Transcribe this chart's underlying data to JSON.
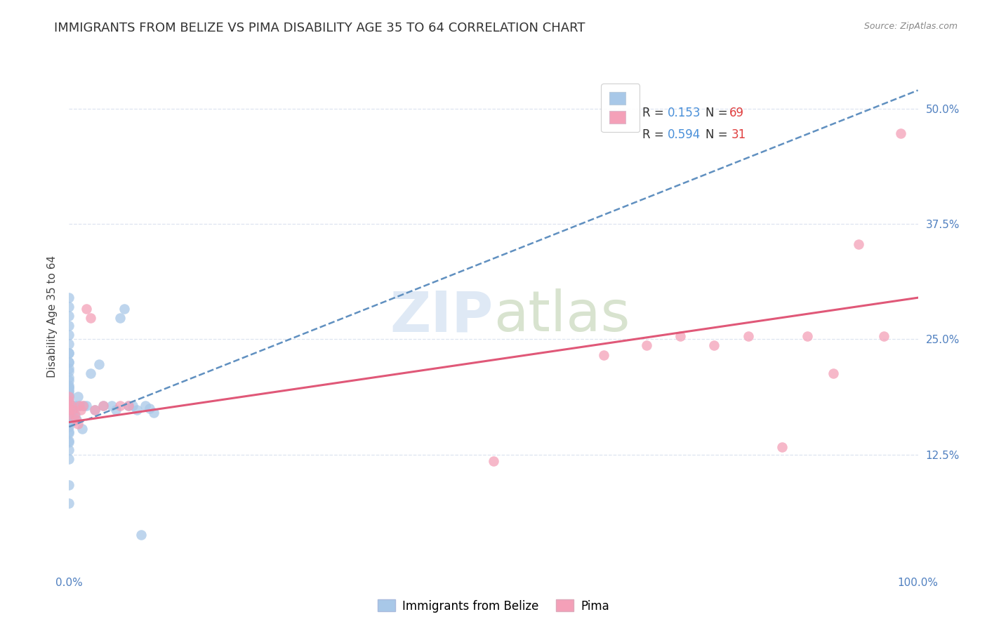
{
  "title": "IMMIGRANTS FROM BELIZE VS PIMA DISABILITY AGE 35 TO 64 CORRELATION CHART",
  "source": "Source: ZipAtlas.com",
  "ylabel": "Disability Age 35 to 64",
  "xlim": [
    0.0,
    1.0
  ],
  "ylim": [
    0.0,
    0.55
  ],
  "xticks": [
    0.0,
    1.0
  ],
  "xticklabels": [
    "0.0%",
    "100.0%"
  ],
  "ytick_positions": [
    0.125,
    0.25,
    0.375,
    0.5
  ],
  "yticklabels_right": [
    "12.5%",
    "25.0%",
    "37.5%",
    "50.0%"
  ],
  "blue_color": "#a8c8e8",
  "pink_color": "#f4a0b8",
  "blue_line_color": "#6090c0",
  "pink_line_color": "#e05878",
  "blue_scatter_x": [
    0.0,
    0.0,
    0.0,
    0.0,
    0.0,
    0.0,
    0.0,
    0.0,
    0.0,
    0.0,
    0.0,
    0.0,
    0.0,
    0.0,
    0.0,
    0.0,
    0.0,
    0.0,
    0.0,
    0.0,
    0.0,
    0.0,
    0.0,
    0.0,
    0.0,
    0.0,
    0.0,
    0.0,
    0.0,
    0.0,
    0.0,
    0.0,
    0.0,
    0.0,
    0.0,
    0.0,
    0.0,
    0.0,
    0.0,
    0.0,
    0.0,
    0.0,
    0.003,
    0.004,
    0.005,
    0.006,
    0.007,
    0.008,
    0.009,
    0.01,
    0.012,
    0.015,
    0.017,
    0.02,
    0.025,
    0.03,
    0.035,
    0.04,
    0.05,
    0.055,
    0.06,
    0.065,
    0.07,
    0.075,
    0.08,
    0.085,
    0.09,
    0.095,
    0.1
  ],
  "blue_scatter_y": [
    0.195,
    0.205,
    0.215,
    0.225,
    0.235,
    0.175,
    0.165,
    0.155,
    0.18,
    0.19,
    0.2,
    0.17,
    0.16,
    0.15,
    0.14,
    0.13,
    0.12,
    0.178,
    0.168,
    0.158,
    0.148,
    0.138,
    0.198,
    0.188,
    0.178,
    0.275,
    0.285,
    0.295,
    0.265,
    0.255,
    0.245,
    0.235,
    0.225,
    0.218,
    0.208,
    0.198,
    0.193,
    0.183,
    0.178,
    0.168,
    0.092,
    0.072,
    0.178,
    0.168,
    0.173,
    0.178,
    0.168,
    0.178,
    0.163,
    0.188,
    0.178,
    0.153,
    0.178,
    0.178,
    0.213,
    0.173,
    0.223,
    0.178,
    0.178,
    0.173,
    0.273,
    0.283,
    0.178,
    0.178,
    0.173,
    0.038,
    0.178,
    0.175,
    0.17
  ],
  "pink_scatter_x": [
    0.0,
    0.0,
    0.0,
    0.0,
    0.0,
    0.003,
    0.004,
    0.006,
    0.008,
    0.01,
    0.012,
    0.014,
    0.016,
    0.02,
    0.025,
    0.03,
    0.04,
    0.06,
    0.07,
    0.5,
    0.63,
    0.68,
    0.72,
    0.76,
    0.8,
    0.84,
    0.87,
    0.9,
    0.93,
    0.96,
    0.98
  ],
  "pink_scatter_y": [
    0.178,
    0.173,
    0.168,
    0.183,
    0.188,
    0.178,
    0.173,
    0.168,
    0.163,
    0.158,
    0.178,
    0.173,
    0.178,
    0.283,
    0.273,
    0.173,
    0.178,
    0.178,
    0.178,
    0.118,
    0.233,
    0.243,
    0.253,
    0.243,
    0.253,
    0.133,
    0.253,
    0.213,
    0.353,
    0.253,
    0.473
  ],
  "blue_trendline_x": [
    0.0,
    1.0
  ],
  "blue_trendline_y": [
    0.155,
    0.52
  ],
  "pink_trendline_x": [
    0.0,
    1.0
  ],
  "pink_trendline_y": [
    0.16,
    0.295
  ],
  "watermark_line1": "ZIP",
  "watermark_line2": "atlas",
  "background_color": "#ffffff",
  "grid_color": "#dde4f0",
  "title_fontsize": 13,
  "axis_label_fontsize": 11,
  "tick_fontsize": 11,
  "legend_blue_label": "R =  0.153   N = 69",
  "legend_pink_label": "R =  0.594   N =  31",
  "bottom_legend_blue": "Immigrants from Belize",
  "bottom_legend_pink": "Pima"
}
